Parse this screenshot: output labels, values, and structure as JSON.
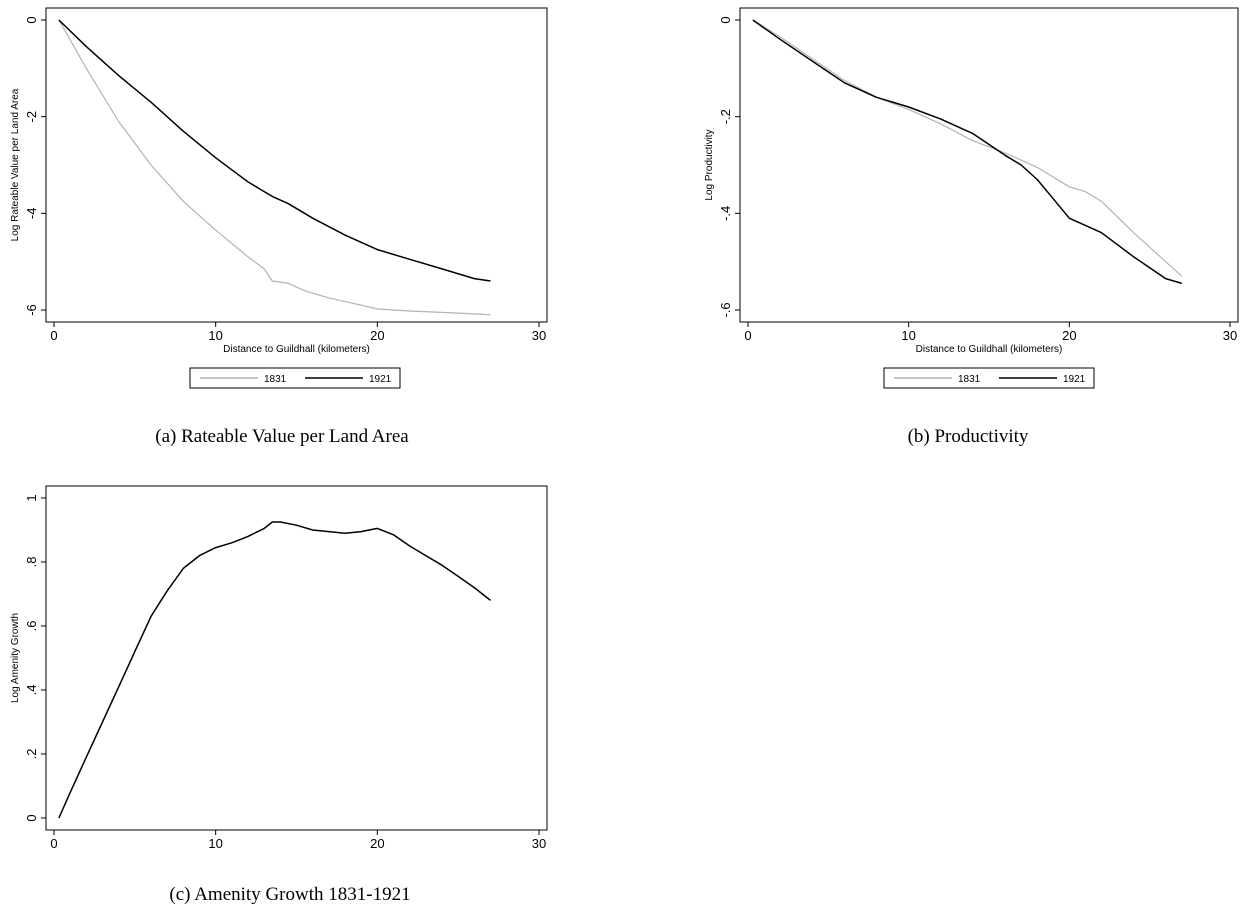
{
  "figure": {
    "captions": [
      "(a) Rateable Value per Land Area",
      "(b) Productivity",
      "(c) Amenity Growth 1831-1921"
    ]
  },
  "colors": {
    "series_1831": "#b3b3b3",
    "series_1921": "#000000",
    "axis": "#000000"
  },
  "chart_data": [
    {
      "type": "line",
      "xlabel": "Distance to Guildhall (kilometers)",
      "ylabel": "Log Rateable Value per Land Area",
      "xlim": [
        0,
        30
      ],
      "ylim": [
        -6,
        0
      ],
      "x_ticks": [
        "0",
        "10",
        "20",
        "30"
      ],
      "y_ticks": [
        "-6",
        "-4",
        "-2",
        "0"
      ],
      "legend": [
        "1831",
        "1921"
      ],
      "grid": false,
      "series": [
        {
          "name": "1831",
          "x": [
            0.3,
            2,
            4,
            6,
            8,
            10,
            12,
            13,
            13.5,
            14.5,
            15.5,
            17,
            19,
            20,
            22,
            24,
            26,
            27
          ],
          "values": [
            0,
            -1.0,
            -2.1,
            -3.0,
            -3.75,
            -4.35,
            -4.9,
            -5.15,
            -5.4,
            -5.45,
            -5.6,
            -5.75,
            -5.9,
            -5.98,
            -6.02,
            -6.05,
            -6.08,
            -6.1
          ]
        },
        {
          "name": "1921",
          "x": [
            0.3,
            2,
            4,
            6,
            8,
            10,
            11,
            12,
            13,
            13.5,
            14.5,
            16,
            18,
            20,
            22,
            24,
            26,
            27
          ],
          "values": [
            0,
            -0.55,
            -1.15,
            -1.7,
            -2.3,
            -2.85,
            -3.1,
            -3.35,
            -3.55,
            -3.65,
            -3.8,
            -4.1,
            -4.45,
            -4.75,
            -4.95,
            -5.15,
            -5.35,
            -5.4
          ]
        }
      ]
    },
    {
      "type": "line",
      "xlabel": "Distance to Guildhall (kilometers)",
      "ylabel": "Log Productivity",
      "xlim": [
        0,
        30
      ],
      "ylim": [
        -0.6,
        0
      ],
      "x_ticks": [
        "0",
        "10",
        "20",
        "30"
      ],
      "y_ticks": [
        "-.6",
        "-.4",
        "-.2",
        "0"
      ],
      "legend": [
        "1831",
        "1921"
      ],
      "grid": false,
      "series": [
        {
          "name": "1831",
          "x": [
            0.3,
            2,
            4,
            6,
            8,
            10,
            12,
            14,
            16,
            18,
            20,
            21,
            22,
            24,
            26,
            27
          ],
          "values": [
            0,
            -0.035,
            -0.08,
            -0.125,
            -0.16,
            -0.185,
            -0.215,
            -0.25,
            -0.275,
            -0.305,
            -0.345,
            -0.355,
            -0.375,
            -0.44,
            -0.5,
            -0.53
          ]
        },
        {
          "name": "1921",
          "x": [
            0.3,
            2,
            4,
            6,
            8,
            10,
            12,
            14,
            16,
            17,
            18,
            19,
            20,
            21,
            22,
            24,
            26,
            27
          ],
          "values": [
            0,
            -0.04,
            -0.085,
            -0.13,
            -0.16,
            -0.18,
            -0.205,
            -0.235,
            -0.28,
            -0.3,
            -0.33,
            -0.37,
            -0.41,
            -0.425,
            -0.44,
            -0.49,
            -0.535,
            -0.545
          ]
        }
      ]
    },
    {
      "type": "line",
      "xlabel": "Distance to Guildhall (kilometers)",
      "ylabel": "Log Amenity Growth",
      "xlim": [
        0,
        30
      ],
      "ylim": [
        0,
        1
      ],
      "x_ticks": [
        "0",
        "10",
        "20",
        "30"
      ],
      "y_ticks": [
        "0",
        ".2",
        ".4",
        ".6",
        ".8",
        "1"
      ],
      "legend": [],
      "grid": false,
      "series": [
        {
          "name": "",
          "x": [
            0.3,
            1,
            2,
            3,
            4,
            5,
            6,
            7,
            8,
            9,
            10,
            11,
            12,
            13,
            13.5,
            14,
            15,
            16,
            17,
            18,
            19,
            20,
            21,
            22,
            23,
            24,
            25,
            26,
            27
          ],
          "values": [
            0,
            0.08,
            0.19,
            0.3,
            0.41,
            0.52,
            0.63,
            0.71,
            0.78,
            0.82,
            0.845,
            0.86,
            0.88,
            0.905,
            0.925,
            0.925,
            0.915,
            0.9,
            0.895,
            0.89,
            0.895,
            0.905,
            0.885,
            0.85,
            0.82,
            0.79,
            0.755,
            0.72,
            0.68
          ]
        }
      ]
    }
  ]
}
